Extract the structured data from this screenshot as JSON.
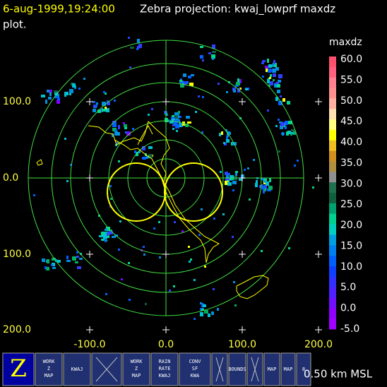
{
  "header": {
    "timestamp": "6-aug-1999,19:24:00",
    "title": "Zebra projection: kwaj_lowprf maxdz",
    "title_cont": "plot."
  },
  "plot": {
    "y_labels": [
      "100.0",
      "0.0",
      "100.0",
      "200.0"
    ],
    "x_labels": [
      "-100.0",
      "0.0",
      "100.0",
      "200.0"
    ]
  },
  "colorbar": {
    "label": "maxdz",
    "ticks": [
      "60.0",
      "55.0",
      "50.0",
      "45.0",
      "40.0",
      "35.0",
      "30.0",
      "25.0",
      "20.0",
      "15.0",
      "10.0",
      "5.0",
      "0.0",
      "-5.0"
    ]
  },
  "toolbar": {
    "buttons": [
      {
        "lines": [
          "Z"
        ]
      },
      {
        "lines": [
          "WORK",
          "Z",
          "MAP"
        ]
      },
      {
        "lines": [
          "KWAJ"
        ]
      },
      {
        "lines": []
      },
      {
        "lines": [
          "WORK",
          "Z",
          "MAP"
        ]
      },
      {
        "lines": [
          "RAIN",
          "RATE",
          "KWAJ"
        ]
      },
      {
        "lines": [
          "CONV",
          "SF",
          "KWA"
        ]
      },
      {
        "lines": []
      },
      {
        "lines": [
          "BOUNDS"
        ]
      },
      {
        "lines": []
      },
      {
        "lines": [
          "MAP"
        ]
      },
      {
        "lines": [
          "MAP"
        ]
      },
      {
        "lines": [
          "8"
        ]
      }
    ]
  },
  "altitude": "0.50 km MSL"
}
